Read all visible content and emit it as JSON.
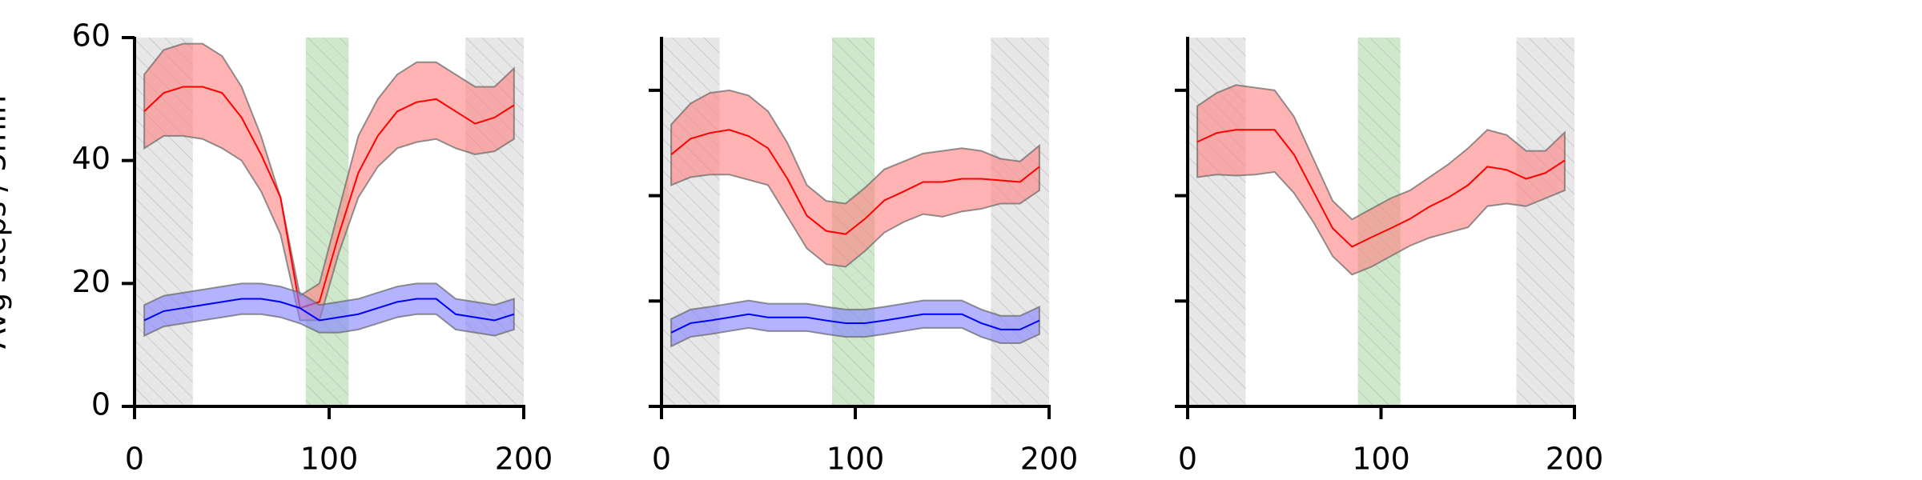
{
  "chart_data": [
    {
      "type": "band-line",
      "ylabel": "Avg steps / 5min",
      "show_ytick_labels": true,
      "xlim": [
        0,
        200
      ],
      "xticks": [
        0,
        100,
        200
      ],
      "ylim": [
        0,
        60
      ],
      "yticks": [
        0,
        20,
        40,
        60
      ],
      "shaded_spans": [
        {
          "x": [
            0,
            30
          ],
          "color": "#d3d3d3"
        },
        {
          "x": [
            88,
            110
          ],
          "color": "#a8d5a2"
        },
        {
          "x": [
            170,
            200
          ],
          "color": "#d3d3d3"
        }
      ],
      "x": [
        5,
        15,
        25,
        35,
        45,
        55,
        65,
        75,
        85,
        95,
        105,
        115,
        125,
        135,
        145,
        155,
        165,
        175,
        185,
        195
      ],
      "series": [
        {
          "color": "#ff0000",
          "band_color": "#ff8080",
          "values": [
            48,
            51,
            52,
            52,
            51,
            47,
            41,
            34,
            16,
            17,
            28,
            38,
            44,
            48,
            49.5,
            50,
            48,
            46,
            47,
            49
          ],
          "lower": [
            42,
            44,
            44,
            43.5,
            42,
            40,
            35,
            28,
            14,
            14,
            25,
            34,
            39,
            42,
            43,
            43.5,
            42,
            41,
            41.5,
            43.5
          ],
          "upper": [
            54,
            58,
            59,
            59,
            57,
            52,
            44,
            34,
            18,
            20,
            32,
            44,
            50,
            54,
            56,
            56,
            54,
            52,
            52,
            55
          ]
        },
        {
          "color": "#0000ff",
          "band_color": "#8080ff",
          "values": [
            14,
            15.5,
            16,
            16.5,
            17,
            17.5,
            17.5,
            17,
            16,
            14,
            14.5,
            15,
            16,
            17,
            17.5,
            17.5,
            15,
            14.5,
            14,
            15
          ],
          "lower": [
            11.5,
            13,
            13.5,
            14,
            14.5,
            15,
            15,
            14.5,
            13.5,
            12,
            12,
            12.5,
            13.5,
            14.5,
            15,
            15,
            12.5,
            12,
            11.5,
            12.5
          ],
          "upper": [
            16.5,
            18,
            18.5,
            19,
            19.5,
            20,
            20,
            19.5,
            18.5,
            16.5,
            17,
            17.5,
            18.5,
            19.5,
            20,
            20,
            17.5,
            17,
            16.5,
            17.5
          ]
        }
      ]
    },
    {
      "type": "band-line",
      "show_ytick_labels": false,
      "xlim": [
        0,
        200
      ],
      "xticks": [
        0,
        100,
        200
      ],
      "ylim": [
        0,
        70
      ],
      "yticks": [
        0,
        20,
        40,
        60
      ],
      "shaded_spans": [
        {
          "x": [
            0,
            30
          ],
          "color": "#d3d3d3"
        },
        {
          "x": [
            88,
            110
          ],
          "color": "#a8d5a2"
        },
        {
          "x": [
            170,
            200
          ],
          "color": "#d3d3d3"
        }
      ],
      "x": [
        5,
        15,
        25,
        35,
        45,
        55,
        65,
        75,
        85,
        95,
        105,
        115,
        125,
        135,
        145,
        155,
        165,
        175,
        185,
        195
      ],
      "series": [
        {
          "color": "#ff0000",
          "band_color": "#ff8080",
          "values": [
            47.8,
            50.8,
            51.9,
            52.5,
            51.3,
            49,
            43.2,
            36.2,
            33.3,
            32.7,
            35.6,
            39.1,
            40.8,
            42.6,
            42.6,
            43.2,
            43.2,
            42.9,
            42.6,
            45.5
          ],
          "lower": [
            42,
            43.5,
            44,
            44,
            43,
            42,
            36,
            30,
            27,
            26.5,
            29.5,
            33,
            35,
            36.5,
            36,
            37,
            37.5,
            38.5,
            38.5,
            41
          ],
          "upper": [
            53.5,
            57.5,
            59.5,
            60,
            59,
            56,
            50,
            42,
            39,
            38.5,
            41.5,
            45,
            46.5,
            48,
            48.5,
            49,
            48.5,
            47,
            46.5,
            49.5
          ]
        },
        {
          "color": "#0000ff",
          "band_color": "#8080ff",
          "values": [
            14,
            15.8,
            16.3,
            16.9,
            17.5,
            16.9,
            16.9,
            16.9,
            16.3,
            15.8,
            15.8,
            16.3,
            16.9,
            17.5,
            17.5,
            17.5,
            15.8,
            14.6,
            14.6,
            16.3
          ],
          "lower": [
            11.4,
            13.2,
            13.7,
            14.3,
            14.9,
            14.3,
            14.3,
            14.3,
            13.7,
            13.2,
            13.2,
            13.7,
            14.3,
            14.9,
            14.9,
            14.9,
            13.2,
            12,
            12,
            13.7
          ],
          "upper": [
            16.6,
            18.4,
            18.9,
            19.5,
            20.1,
            19.5,
            19.5,
            19.5,
            18.9,
            18.4,
            18.4,
            18.9,
            19.5,
            20.1,
            20.1,
            20.1,
            18.4,
            17.2,
            17.2,
            18.9
          ]
        }
      ]
    },
    {
      "type": "band-line",
      "show_ytick_labels": false,
      "xlim": [
        0,
        200
      ],
      "xticks": [
        0,
        100,
        200
      ],
      "ylim": [
        0,
        70
      ],
      "yticks": [
        0,
        20,
        40,
        60
      ],
      "shaded_spans": [
        {
          "x": [
            0,
            30
          ],
          "color": "#d3d3d3"
        },
        {
          "x": [
            88,
            110
          ],
          "color": "#a8d5a2"
        },
        {
          "x": [
            170,
            200
          ],
          "color": "#d3d3d3"
        }
      ],
      "x": [
        5,
        15,
        25,
        35,
        45,
        55,
        65,
        75,
        85,
        95,
        105,
        115,
        125,
        135,
        145,
        155,
        165,
        175,
        185,
        195
      ],
      "series": [
        {
          "color": "#ff0000",
          "band_color": "#ff8080",
          "values": [
            50.2,
            51.9,
            52.5,
            52.5,
            52.5,
            47.8,
            40.8,
            33.8,
            30.3,
            32.1,
            33.8,
            35.6,
            37.9,
            39.7,
            42,
            45.5,
            44.9,
            43.2,
            44.3,
            46.7
          ],
          "lower": [
            43.5,
            44,
            43.8,
            44,
            44.5,
            40.5,
            35,
            28.5,
            25,
            26.5,
            28.5,
            30.5,
            32,
            33,
            34,
            38,
            38.5,
            38,
            39.5,
            41
          ],
          "upper": [
            57,
            59.5,
            61,
            60.5,
            60,
            55,
            47,
            39,
            35.5,
            37.5,
            39.5,
            41,
            43.5,
            46,
            49,
            52.5,
            51.5,
            48.5,
            48.5,
            52
          ]
        }
      ]
    }
  ]
}
